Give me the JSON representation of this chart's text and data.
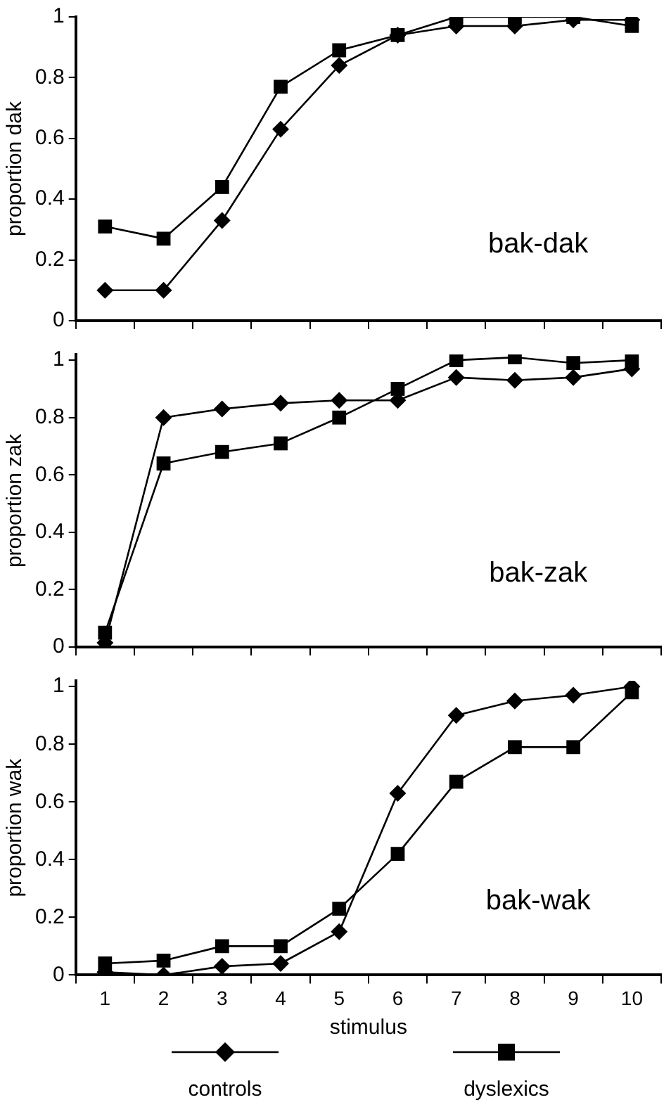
{
  "chart_data": [
    {
      "type": "line",
      "ylabel": "proportion dak",
      "annotations": [
        "bak-dak"
      ],
      "categories": [
        "1",
        "2",
        "3",
        "4",
        "5",
        "6",
        "7",
        "8",
        "9",
        "10"
      ],
      "ylim": [
        0,
        1
      ],
      "yticks": [
        0,
        0.2,
        0.4,
        0.6,
        0.8,
        1
      ],
      "grid": false,
      "tick_labels": "y",
      "line_style": "solid",
      "series": [
        {
          "color": "#000000",
          "marker": "diamond",
          "values": [
            0.1,
            0.1,
            0.33,
            0.63,
            0.84,
            0.94,
            0.97,
            0.97,
            0.99,
            0.99
          ]
        },
        {
          "color": "#000000",
          "marker": "square",
          "values": [
            0.31,
            0.27,
            0.44,
            0.77,
            0.89,
            0.94,
            1.0,
            1.0,
            1.0,
            0.97
          ]
        }
      ]
    },
    {
      "type": "line",
      "ylabel": "proportion zak",
      "annotations": [
        "bak-zak"
      ],
      "categories": [
        "1",
        "2",
        "3",
        "4",
        "5",
        "6",
        "7",
        "8",
        "9",
        "10"
      ],
      "ylim": [
        0,
        1.02
      ],
      "yticks": [
        0,
        0.2,
        0.4,
        0.6,
        0.8,
        1
      ],
      "grid": false,
      "tick_labels": "y",
      "line_style": "solid",
      "series": [
        {
          "color": "#000000",
          "marker": "diamond",
          "values": [
            0.015,
            0.8,
            0.83,
            0.85,
            0.86,
            0.86,
            0.94,
            0.93,
            0.94,
            0.97
          ]
        },
        {
          "color": "#000000",
          "marker": "square",
          "values": [
            0.05,
            0.64,
            0.68,
            0.71,
            0.8,
            0.9,
            1.0,
            1.01,
            0.99,
            1.0
          ]
        }
      ]
    },
    {
      "type": "line",
      "ylabel": "proportion wak",
      "xlabel": "stimulus",
      "annotations": [
        "bak-wak"
      ],
      "categories": [
        "1",
        "2",
        "3",
        "4",
        "5",
        "6",
        "7",
        "8",
        "9",
        "10"
      ],
      "ylim": [
        0,
        1.02
      ],
      "yticks": [
        0,
        0.2,
        0.4,
        0.6,
        0.8,
        1
      ],
      "grid": false,
      "legend": "bottom",
      "line_style": "solid",
      "series": [
        {
          "name": "controls",
          "color": "#000000",
          "marker": "diamond",
          "values": [
            0.01,
            0.0,
            0.03,
            0.04,
            0.15,
            0.63,
            0.9,
            0.95,
            0.97,
            1.0
          ]
        },
        {
          "name": "dyslexics",
          "color": "#000000",
          "marker": "square",
          "values": [
            0.04,
            0.05,
            0.1,
            0.1,
            0.23,
            0.42,
            0.67,
            0.79,
            0.79,
            0.98
          ]
        }
      ]
    }
  ]
}
